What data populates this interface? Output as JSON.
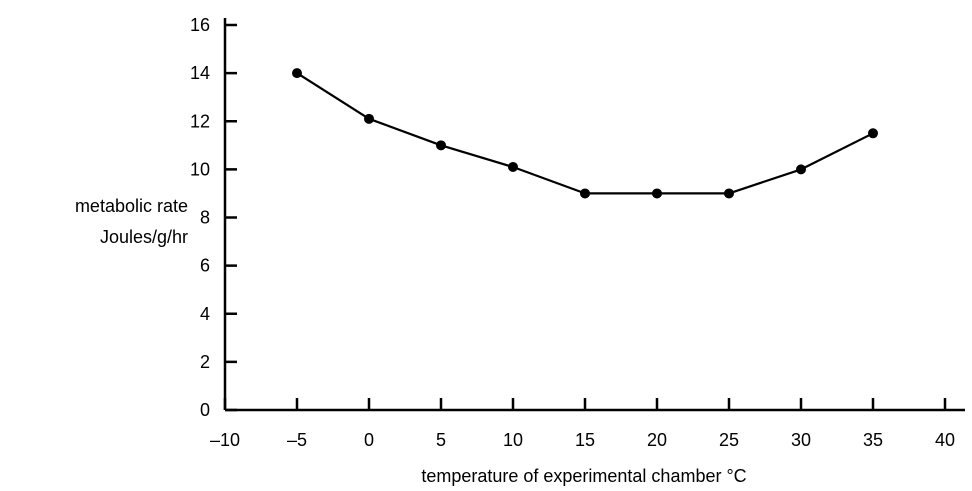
{
  "chart_data": {
    "type": "line",
    "title": "",
    "xlabel": "temperature of experimental chamber °C",
    "ylabel_lines": [
      "metabolic rate",
      "Joules/g/hr"
    ],
    "x_ticks": [
      -10,
      -5,
      0,
      5,
      10,
      15,
      20,
      25,
      30,
      35,
      40
    ],
    "x_tick_labels": [
      "–10",
      "–5",
      "0",
      "5",
      "10",
      "15",
      "20",
      "25",
      "30",
      "35",
      "40"
    ],
    "y_ticks": [
      0,
      2,
      4,
      6,
      8,
      10,
      12,
      14,
      16
    ],
    "y_tick_labels": [
      "0",
      "2",
      "4",
      "6",
      "8",
      "10",
      "12",
      "14",
      "16"
    ],
    "xlim": [
      -10,
      40
    ],
    "ylim": [
      0,
      16
    ],
    "grid": false,
    "series": [
      {
        "x": [
          -5,
          0,
          5,
          10,
          15,
          20,
          25,
          30,
          35
        ],
        "y": [
          14,
          12.1,
          11,
          10.1,
          9,
          9,
          9,
          10,
          11.5
        ]
      }
    ],
    "line_color": "#000000",
    "marker_color": "#000000"
  }
}
